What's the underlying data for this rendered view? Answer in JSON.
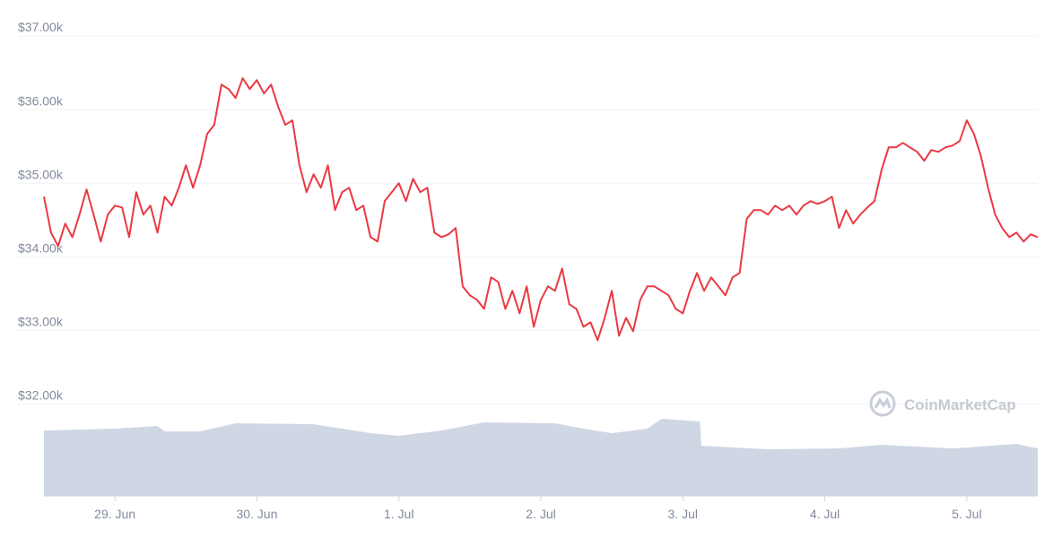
{
  "chart_data": {
    "type": "line",
    "color": "#ea3943",
    "x": [
      -0.5,
      -0.45,
      -0.4,
      -0.35,
      -0.3,
      -0.25,
      -0.2,
      -0.15,
      -0.1,
      -0.05,
      0,
      0.05,
      0.1,
      0.15,
      0.2,
      0.25,
      0.3,
      0.35,
      0.4,
      0.45,
      0.5,
      0.55,
      0.6,
      0.65,
      0.7,
      0.75,
      0.8,
      0.85,
      0.9,
      0.95,
      1,
      1.05,
      1.1,
      1.15,
      1.2,
      1.25,
      1.3,
      1.35,
      1.4,
      1.45,
      1.5,
      1.55,
      1.6,
      1.65,
      1.7,
      1.75,
      1.8,
      1.85,
      1.9,
      1.95,
      2,
      2.05,
      2.1,
      2.15,
      2.2,
      2.25,
      2.3,
      2.35,
      2.4,
      2.45,
      2.5,
      2.55,
      2.6,
      2.65,
      2.7,
      2.75,
      2.8,
      2.85,
      2.9,
      2.95,
      3,
      3.05,
      3.1,
      3.15,
      3.2,
      3.25,
      3.3,
      3.35,
      3.4,
      3.45,
      3.5,
      3.55,
      3.6,
      3.65,
      3.7,
      3.75,
      3.8,
      3.85,
      3.9,
      3.95,
      4,
      4.05,
      4.1,
      4.15,
      4.2,
      4.25,
      4.3,
      4.35,
      4.4,
      4.45,
      4.5,
      4.55,
      4.6,
      4.65,
      4.7,
      4.75,
      4.8,
      4.85,
      4.9,
      4.95,
      5,
      5.05,
      5.1,
      5.15,
      5.2,
      5.25,
      5.3,
      5.35,
      5.4,
      5.45,
      5.5,
      5.55,
      5.6,
      5.65,
      5.7,
      5.75,
      5.8,
      5.85,
      5.9,
      5.95,
      6,
      6.05,
      6.1,
      6.15,
      6.2,
      6.25,
      6.3,
      6.35,
      6.4,
      6.45,
      6.5
    ],
    "values": [
      34817,
      34329,
      34146,
      34451,
      34268,
      34573,
      34915,
      34573,
      34207,
      34573,
      34695,
      34671,
      34268,
      34878,
      34573,
      34695,
      34329,
      34817,
      34695,
      34939,
      35244,
      34939,
      35244,
      35671,
      35793,
      36341,
      36280,
      36159,
      36427,
      36280,
      36402,
      36220,
      36341,
      36037,
      35793,
      35854,
      35244,
      34878,
      35122,
      34939,
      35244,
      34634,
      34878,
      34939,
      34634,
      34695,
      34268,
      34207,
      34756,
      34878,
      35000,
      34756,
      35061,
      34878,
      34939,
      34329,
      34268,
      34305,
      34390,
      33597,
      33476,
      33415,
      33293,
      33720,
      33659,
      33293,
      33537,
      33232,
      33598,
      33049,
      33415,
      33598,
      33537,
      33841,
      33354,
      33293,
      33049,
      33110,
      32866,
      33171,
      33537,
      32927,
      33171,
      32988,
      33415,
      33598,
      33598,
      33537,
      33476,
      33293,
      33232,
      33537,
      33780,
      33537,
      33720,
      33598,
      33476,
      33720,
      33780,
      34512,
      34634,
      34634,
      34573,
      34695,
      34634,
      34695,
      34573,
      34695,
      34756,
      34720,
      34756,
      34817,
      34390,
      34634,
      34451,
      34573,
      34671,
      34756,
      35183,
      35488,
      35488,
      35549,
      35488,
      35427,
      35305,
      35451,
      35427,
      35488,
      35512,
      35573,
      35854,
      35671,
      35366,
      34939,
      34573,
      34390,
      34268,
      34329,
      34207,
      34305,
      34268
    ],
    "xlim": [
      -0.5,
      6.5
    ],
    "xticks": [
      {
        "value": 0,
        "label": "29. Jun"
      },
      {
        "value": 1,
        "label": "30. Jun"
      },
      {
        "value": 2,
        "label": "1. Jul"
      },
      {
        "value": 3,
        "label": "2. Jul"
      },
      {
        "value": 4,
        "label": "3. Jul"
      },
      {
        "value": 5,
        "label": "4. Jul"
      },
      {
        "value": 6,
        "label": "5. Jul"
      }
    ],
    "ylim": [
      30750,
      37100
    ],
    "yticks": [
      {
        "value": 32000,
        "label": "$32.00k"
      },
      {
        "value": 33000,
        "label": "$33.00k"
      },
      {
        "value": 34000,
        "label": "$34.00k"
      },
      {
        "value": 35000,
        "label": "$35.00k"
      },
      {
        "value": 36000,
        "label": "$36.00k"
      },
      {
        "value": 37000,
        "label": "$37.00k"
      }
    ],
    "grid": true,
    "volume": {
      "color": "#cfd6e4",
      "ylim": [
        0,
        100
      ],
      "x": [
        -0.5,
        0,
        0.3,
        0.35,
        0.6,
        0.85,
        1.4,
        1.8,
        2,
        2.3,
        2.6,
        3.1,
        3.3,
        3.5,
        3.75,
        3.85,
        4.12,
        4.13,
        4.6,
        5.1,
        5.4,
        5.9,
        6.35,
        6.5
      ],
      "values": [
        73,
        75,
        78,
        72,
        72,
        81,
        80,
        70,
        67,
        73,
        82,
        81,
        75,
        70,
        75,
        86,
        83,
        56,
        52,
        53,
        57,
        53,
        58,
        53
      ]
    },
    "watermark": "CoinMarketCap"
  }
}
